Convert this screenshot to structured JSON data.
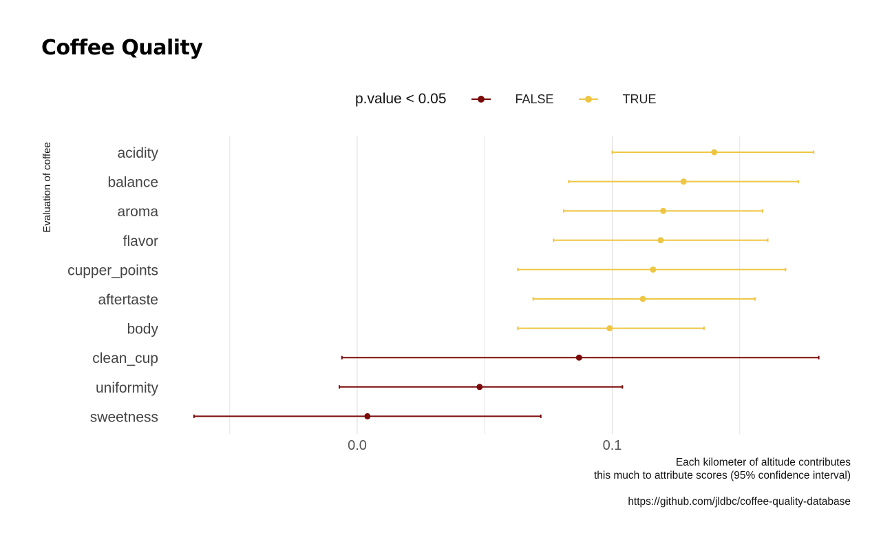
{
  "title": "Coffee Quality",
  "legend": {
    "title": "p.value < 0.05",
    "items": [
      {
        "label": "FALSE",
        "color": "#7a0a0a"
      },
      {
        "label": "TRUE",
        "color": "#eec643"
      }
    ]
  },
  "caption": {
    "line1": "Each kilometer of altitude contributes",
    "line2": "this much to attribute scores (95% confidence interval)",
    "line3": "https://github.com/jldbc/coffee-quality-database"
  },
  "chart_data": {
    "type": "scatter",
    "title": "Coffee Quality",
    "ylabel": "Evaluation of coffee",
    "xlabel": "",
    "xlim": [
      -0.065,
      0.19
    ],
    "x_ticks": [
      0.0,
      0.1
    ],
    "x_tick_labels": [
      "0.0",
      "0.1"
    ],
    "minor_gridlines": [
      -0.05,
      0.05,
      0.15
    ],
    "grid": true,
    "legend_position": "top",
    "series": [
      {
        "name": "FALSE",
        "color": "#7a0a0a",
        "points": [
          {
            "term": "clean_cup",
            "estimate": 0.087,
            "conf_low": -0.006,
            "conf_high": 0.181
          },
          {
            "term": "uniformity",
            "estimate": 0.048,
            "conf_low": -0.007,
            "conf_high": 0.104
          },
          {
            "term": "sweetness",
            "estimate": 0.004,
            "conf_low": -0.064,
            "conf_high": 0.072
          }
        ]
      },
      {
        "name": "TRUE",
        "color": "#eec643",
        "points": [
          {
            "term": "acidity",
            "estimate": 0.14,
            "conf_low": 0.1,
            "conf_high": 0.179
          },
          {
            "term": "balance",
            "estimate": 0.128,
            "conf_low": 0.083,
            "conf_high": 0.173
          },
          {
            "term": "aroma",
            "estimate": 0.12,
            "conf_low": 0.081,
            "conf_high": 0.159
          },
          {
            "term": "flavor",
            "estimate": 0.119,
            "conf_low": 0.077,
            "conf_high": 0.161
          },
          {
            "term": "cupper_points",
            "estimate": 0.116,
            "conf_low": 0.063,
            "conf_high": 0.168
          },
          {
            "term": "aftertaste",
            "estimate": 0.112,
            "conf_low": 0.069,
            "conf_high": 0.156
          },
          {
            "term": "body",
            "estimate": 0.099,
            "conf_low": 0.063,
            "conf_high": 0.136
          }
        ]
      }
    ],
    "categories": [
      "acidity",
      "balance",
      "aroma",
      "flavor",
      "cupper_points",
      "aftertaste",
      "body",
      "clean_cup",
      "uniformity",
      "sweetness"
    ]
  }
}
